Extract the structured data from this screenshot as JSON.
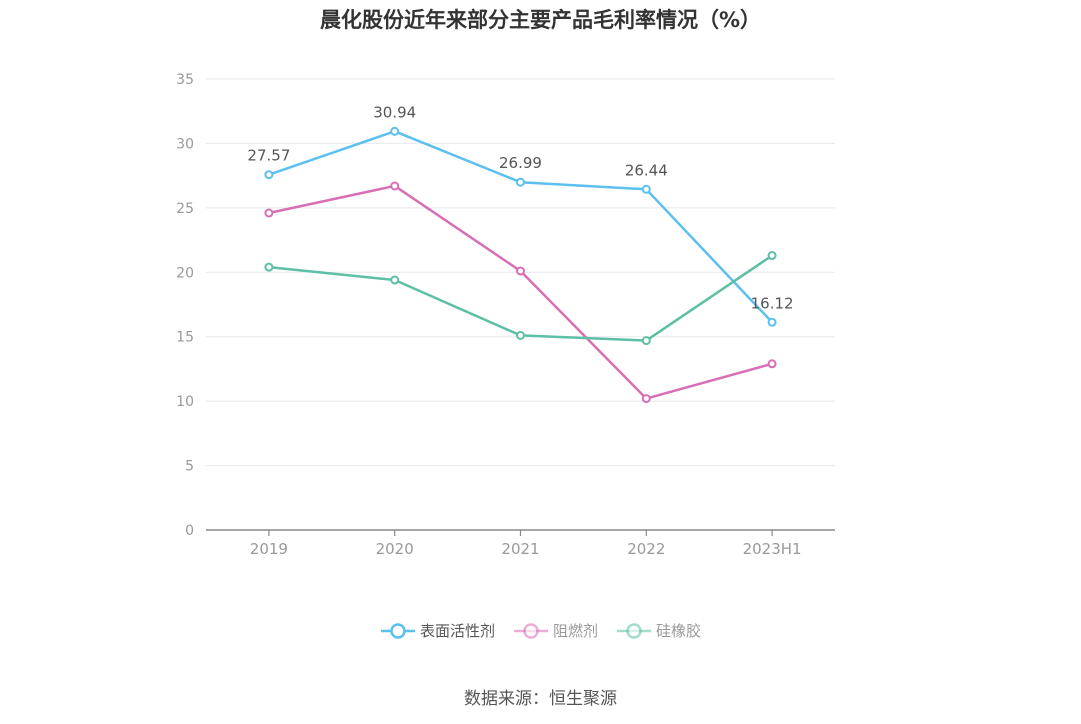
{
  "chart_data": {
    "type": "line",
    "title": "晨化股份近年来部分主要产品毛利率情况（%）",
    "categories": [
      "2019",
      "2020",
      "2021",
      "2022",
      "2023H1"
    ],
    "ylim": [
      0,
      35
    ],
    "yticks": [
      0,
      5,
      10,
      15,
      20,
      25,
      30,
      35
    ],
    "grid": true,
    "legend_position": "bottom",
    "series": [
      {
        "name": "表面活性剂",
        "color": "#5bc0f0",
        "values": [
          27.57,
          30.94,
          26.99,
          26.44,
          16.12
        ],
        "show_labels": true
      },
      {
        "name": "阻燃剂",
        "color": "#d86fb5",
        "values": [
          24.6,
          26.7,
          20.1,
          10.2,
          12.9
        ],
        "show_labels": false
      },
      {
        "name": "硅橡胶",
        "color": "#5dbfa6",
        "values": [
          20.4,
          19.4,
          15.1,
          14.7,
          21.3
        ],
        "show_labels": false
      }
    ]
  },
  "source": "数据来源：恒生聚源"
}
